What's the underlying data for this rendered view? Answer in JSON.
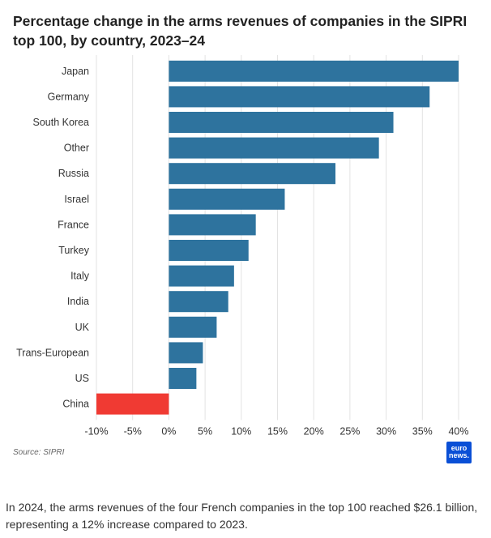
{
  "title": "Percentage change in the arms revenues of companies in the SIPRI top 100, by country, 2023–24",
  "source": "Source: SIPRI",
  "logo": {
    "line1": "euro",
    "line2": "news."
  },
  "caption": "In 2024, the arms revenues of the four French companies in the top 100 reached $26.1 billion, representing a 12% increase compared to 2023.",
  "colors": {
    "positive": "#2e739e",
    "negative": "#f03a33",
    "grid": "#e3e3e3"
  },
  "chart_data": {
    "type": "bar",
    "orientation": "horizontal",
    "categories": [
      "Japan",
      "Germany",
      "South Korea",
      "Other",
      "Russia",
      "Israel",
      "France",
      "Turkey",
      "Italy",
      "India",
      "UK",
      "Trans-European",
      "US",
      "China"
    ],
    "values": [
      40,
      36,
      31,
      29,
      23,
      16,
      12,
      11,
      9,
      8.2,
      6.6,
      4.7,
      3.8,
      -10
    ],
    "xlim": [
      -10,
      40
    ],
    "xticks": [
      -10,
      -5,
      0,
      5,
      10,
      15,
      20,
      25,
      30,
      35,
      40
    ],
    "xtick_labels": [
      "-10%",
      "-5%",
      "0%",
      "5%",
      "10%",
      "15%",
      "20%",
      "25%",
      "30%",
      "35%",
      "40%"
    ],
    "grid": "vertical"
  }
}
